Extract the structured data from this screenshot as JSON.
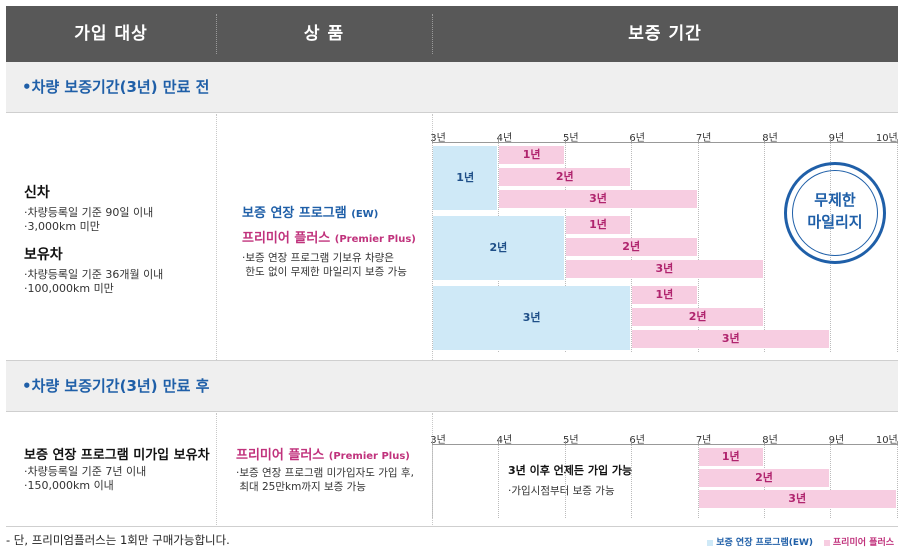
{
  "header": {
    "col_target": "가입 대상",
    "col_product": "상   품",
    "col_period": "보증 기간"
  },
  "section1": {
    "title": "•차량 보증기간(3년) 만료 전",
    "new_car": {
      "title": "신차",
      "items": [
        "·차량등록일 기준 90일 이내",
        "·3,000km 미만"
      ]
    },
    "owned_car": {
      "title": "보유차",
      "items": [
        "·차량등록일 기준 36개월 이내",
        "·100,000km 미만"
      ]
    },
    "product_ew": "보증 연장 프로그램",
    "product_ew_en": "(EW)",
    "product_pp": "프리미어 플러스",
    "product_pp_en": "(Premier Plus)",
    "desc": [
      "·보증 연장 프로그램 기보유 차량은",
      " 한도 없이 무제한 마일리지 보증 가능"
    ],
    "stamp": [
      "무제한",
      "마일리지"
    ]
  },
  "section2": {
    "title": "•차량 보증기간(3년) 만료 후",
    "target_title": "보증 연장 프로그램 미가입 보유차",
    "items": [
      "·차량등록일 기준 7년 이내",
      "·150,000km 이내"
    ],
    "product_pp": "프리미어 플러스",
    "product_pp_en": "(Premier Plus)",
    "desc": [
      "·보증 연장 프로그램 미가입자도 가입 후,",
      " 최대 25만km까지 보증 가능"
    ],
    "note_title": "3년 이후 언제든 가입 가능",
    "note_sub": "·가입시점부터 보증 가능"
  },
  "chart_data": [
    {
      "type": "bar",
      "ticks": [
        "3년",
        "4년",
        "5년",
        "6년",
        "7년",
        "8년",
        "9년",
        "10년"
      ],
      "xlim": [
        3,
        10
      ],
      "bars": [
        {
          "series": "ew",
          "start": 3,
          "end": 4,
          "label": "1년",
          "rows": 3
        },
        {
          "series": "pp",
          "start": 4,
          "end": 5,
          "label": "1년"
        },
        {
          "series": "pp",
          "start": 4,
          "end": 6,
          "label": "2년"
        },
        {
          "series": "pp",
          "start": 4,
          "end": 7,
          "label": "3년"
        },
        {
          "series": "ew",
          "start": 3,
          "end": 5,
          "label": "2년",
          "rows": 3
        },
        {
          "series": "pp",
          "start": 5,
          "end": 6,
          "label": "1년"
        },
        {
          "series": "pp",
          "start": 5,
          "end": 7,
          "label": "2년"
        },
        {
          "series": "pp",
          "start": 5,
          "end": 8,
          "label": "3년"
        },
        {
          "series": "ew",
          "start": 3,
          "end": 6,
          "label": "3년",
          "rows": 3
        },
        {
          "series": "pp",
          "start": 6,
          "end": 7,
          "label": "1년"
        },
        {
          "series": "pp",
          "start": 6,
          "end": 8,
          "label": "2년"
        },
        {
          "series": "pp",
          "start": 6,
          "end": 9,
          "label": "3년"
        }
      ]
    },
    {
      "type": "bar",
      "ticks": [
        "3년",
        "4년",
        "5년",
        "6년",
        "7년",
        "8년",
        "9년",
        "10년"
      ],
      "xlim": [
        3,
        10
      ],
      "bars": [
        {
          "series": "pp",
          "start": 7,
          "end": 8,
          "label": "1년"
        },
        {
          "series": "pp",
          "start": 7,
          "end": 9,
          "label": "2년"
        },
        {
          "series": "pp",
          "start": 7,
          "end": 10,
          "label": "3년"
        }
      ]
    }
  ],
  "colors": {
    "ew": "#cfe9f7",
    "pp": "#f7cde1",
    "header": "#585858",
    "accent_blue": "#1f5fa8",
    "accent_pink": "#c0327c"
  },
  "footer": {
    "note": "- 단, 프리미엄플러스는 1회만 구매가능합니다.",
    "legend_ew": "보증 연장 프로그램(EW)",
    "legend_pp": "프리미어 플러스"
  }
}
